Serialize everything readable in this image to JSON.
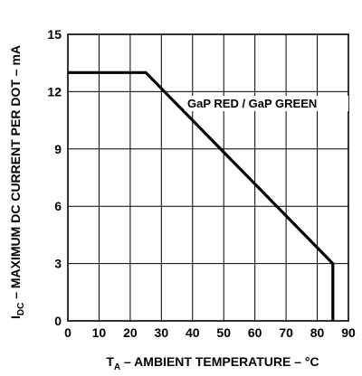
{
  "chart_data": {
    "type": "line",
    "xlabel": {
      "main": "T",
      "sub": "A",
      "rest": " – AMBIENT TEMPERATURE – °C"
    },
    "ylabel": {
      "main": "I",
      "sub": "DC",
      "rest": " – MAXIMUM DC CURRENT PER DOT – mA"
    },
    "xlim": [
      0,
      90
    ],
    "ylim": [
      0,
      15
    ],
    "x_ticks": [
      0,
      10,
      20,
      30,
      40,
      50,
      60,
      70,
      80,
      90
    ],
    "y_ticks": [
      0,
      3,
      6,
      9,
      12,
      15
    ],
    "x_gridlines": [
      0,
      10,
      20,
      30,
      40,
      50,
      60,
      70,
      80,
      90
    ],
    "y_gridlines": [
      0,
      3,
      6,
      9,
      12,
      15
    ],
    "grid": true,
    "series": [
      {
        "name": "GaP RED / GaP GREEN",
        "x": [
          0,
          25,
          85,
          85
        ],
        "y": [
          13,
          13,
          3,
          0
        ]
      }
    ],
    "annotation": "GaP RED / GaP GREEN"
  }
}
